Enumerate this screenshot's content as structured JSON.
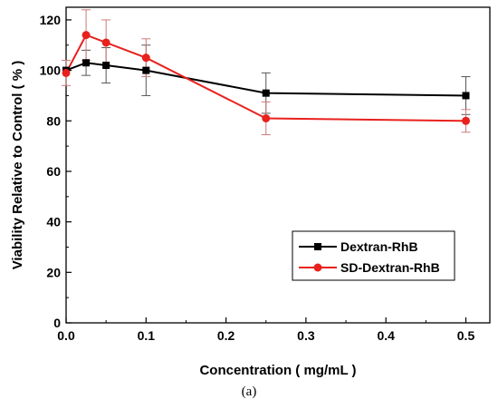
{
  "chart_data": {
    "type": "line",
    "xlabel": "Concentration ( mg/mL )",
    "ylabel": "Viability Relative to Control ( % )",
    "xlim": [
      0,
      0.53
    ],
    "ylim": [
      0,
      125
    ],
    "x_ticks": [
      0.0,
      0.1,
      0.2,
      0.3,
      0.4,
      0.5
    ],
    "x_tick_labels": [
      "0.0",
      "0.1",
      "0.2",
      "0.3",
      "0.4",
      "0.5"
    ],
    "y_ticks": [
      0,
      20,
      40,
      60,
      80,
      100,
      120
    ],
    "y_tick_labels": [
      "0",
      "20",
      "40",
      "60",
      "80",
      "100",
      "120"
    ],
    "grid": false,
    "legend_position": "bottom-right",
    "series": [
      {
        "name": "Dextran-RhB",
        "color": "#000000",
        "marker": "square",
        "x": [
          0,
          0.025,
          0.05,
          0.1,
          0.25,
          0.5
        ],
        "y": [
          100,
          103,
          102,
          100,
          91,
          90
        ],
        "error": [
          0,
          5,
          7,
          10,
          8,
          7.5
        ]
      },
      {
        "name": "SD-Dextran-RhB",
        "color": "#e8211d",
        "marker": "circle",
        "x": [
          0,
          0.025,
          0.05,
          0.1,
          0.25,
          0.5
        ],
        "y": [
          99,
          114,
          111,
          105,
          81,
          80
        ],
        "error": [
          5,
          10,
          9,
          7.5,
          6.5,
          4.5
        ]
      }
    ]
  },
  "caption": "(a)"
}
